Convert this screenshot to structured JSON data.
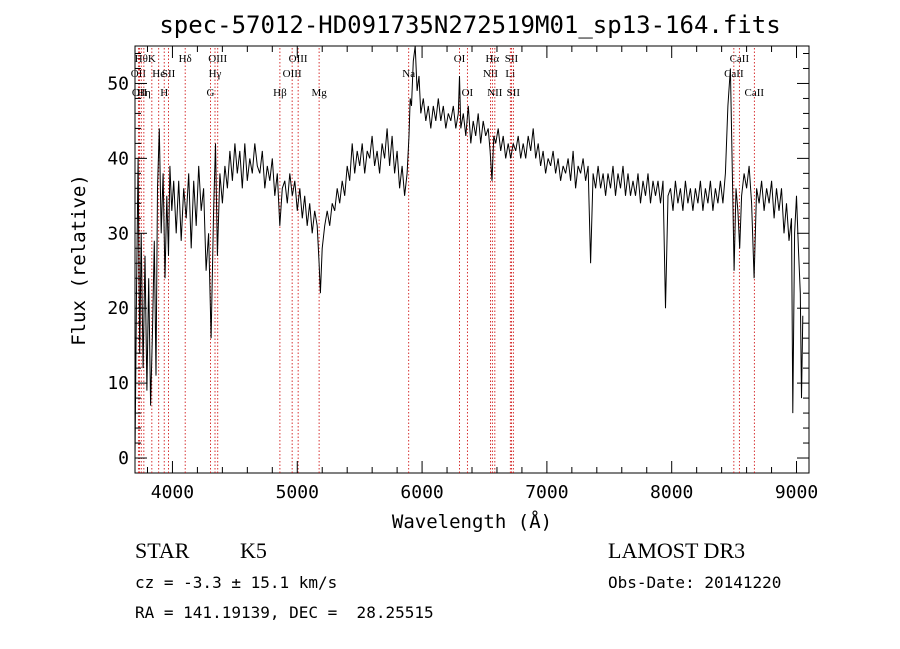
{
  "chart_data": {
    "type": "line",
    "title": "spec-57012-HD091735N272519M01_sp13-164.fits",
    "xlabel": "Wavelength (Å)",
    "ylabel": "Flux (relative)",
    "xlim": [
      3700,
      9100
    ],
    "ylim": [
      -2,
      55
    ],
    "xticks": [
      4000,
      5000,
      6000,
      7000,
      8000,
      9000
    ],
    "yticks": [
      0,
      10,
      20,
      30,
      40,
      50
    ],
    "colors": {
      "spectrum": "#000000",
      "lines": "#cc0000"
    },
    "series": [
      {
        "values_xy": [
          [
            3700,
            0
          ],
          [
            3712,
            22
          ],
          [
            3725,
            40
          ],
          [
            3738,
            14
          ],
          [
            3750,
            30
          ],
          [
            3765,
            12
          ],
          [
            3780,
            27
          ],
          [
            3795,
            9
          ],
          [
            3810,
            24
          ],
          [
            3825,
            7
          ],
          [
            3840,
            17
          ],
          [
            3855,
            29
          ],
          [
            3868,
            11
          ],
          [
            3880,
            36
          ],
          [
            3895,
            44
          ],
          [
            3910,
            30
          ],
          [
            3925,
            38
          ],
          [
            3940,
            24
          ],
          [
            3955,
            35
          ],
          [
            3968,
            27
          ],
          [
            3980,
            39
          ],
          [
            3995,
            33
          ],
          [
            4010,
            37
          ],
          [
            4030,
            30
          ],
          [
            4050,
            37
          ],
          [
            4070,
            29
          ],
          [
            4090,
            36
          ],
          [
            4110,
            32
          ],
          [
            4130,
            38
          ],
          [
            4150,
            28
          ],
          [
            4170,
            37
          ],
          [
            4190,
            31
          ],
          [
            4210,
            39
          ],
          [
            4230,
            33
          ],
          [
            4250,
            36
          ],
          [
            4270,
            25
          ],
          [
            4290,
            30
          ],
          [
            4310,
            16
          ],
          [
            4330,
            33
          ],
          [
            4345,
            42
          ],
          [
            4360,
            27
          ],
          [
            4380,
            38
          ],
          [
            4400,
            34
          ],
          [
            4420,
            39
          ],
          [
            4440,
            36
          ],
          [
            4460,
            41
          ],
          [
            4480,
            37
          ],
          [
            4500,
            42
          ],
          [
            4520,
            38
          ],
          [
            4540,
            41
          ],
          [
            4560,
            36
          ],
          [
            4580,
            42
          ],
          [
            4600,
            37
          ],
          [
            4620,
            40
          ],
          [
            4640,
            38
          ],
          [
            4660,
            42
          ],
          [
            4680,
            39
          ],
          [
            4700,
            38
          ],
          [
            4720,
            41
          ],
          [
            4740,
            36
          ],
          [
            4760,
            39
          ],
          [
            4780,
            37
          ],
          [
            4800,
            40
          ],
          [
            4820,
            35
          ],
          [
            4840,
            38
          ],
          [
            4860,
            31
          ],
          [
            4880,
            36
          ],
          [
            4900,
            37
          ],
          [
            4920,
            34
          ],
          [
            4940,
            38
          ],
          [
            4960,
            35
          ],
          [
            4980,
            37
          ],
          [
            5000,
            33
          ],
          [
            5020,
            36
          ],
          [
            5040,
            32
          ],
          [
            5060,
            35
          ],
          [
            5080,
            31
          ],
          [
            5100,
            34
          ],
          [
            5120,
            30
          ],
          [
            5140,
            33
          ],
          [
            5160,
            31
          ],
          [
            5175,
            26
          ],
          [
            5185,
            22
          ],
          [
            5200,
            28
          ],
          [
            5220,
            31
          ],
          [
            5240,
            33
          ],
          [
            5260,
            31
          ],
          [
            5280,
            34
          ],
          [
            5300,
            33
          ],
          [
            5320,
            36
          ],
          [
            5340,
            34
          ],
          [
            5360,
            37
          ],
          [
            5380,
            35
          ],
          [
            5400,
            39
          ],
          [
            5420,
            37
          ],
          [
            5440,
            42
          ],
          [
            5460,
            38
          ],
          [
            5480,
            41
          ],
          [
            5500,
            39
          ],
          [
            5520,
            42
          ],
          [
            5540,
            38
          ],
          [
            5560,
            41
          ],
          [
            5580,
            40
          ],
          [
            5600,
            43
          ],
          [
            5620,
            39
          ],
          [
            5640,
            41
          ],
          [
            5660,
            38
          ],
          [
            5680,
            42
          ],
          [
            5700,
            40
          ],
          [
            5720,
            44
          ],
          [
            5740,
            39
          ],
          [
            5760,
            43
          ],
          [
            5780,
            38
          ],
          [
            5800,
            41
          ],
          [
            5820,
            36
          ],
          [
            5840,
            39
          ],
          [
            5860,
            35
          ],
          [
            5880,
            38
          ],
          [
            5895,
            43
          ],
          [
            5905,
            48
          ],
          [
            5915,
            47
          ],
          [
            5930,
            53
          ],
          [
            5945,
            57
          ],
          [
            5960,
            49
          ],
          [
            5975,
            51
          ],
          [
            5990,
            46
          ],
          [
            6010,
            48
          ],
          [
            6030,
            45
          ],
          [
            6050,
            47
          ],
          [
            6070,
            44
          ],
          [
            6090,
            47
          ],
          [
            6110,
            45
          ],
          [
            6130,
            48
          ],
          [
            6150,
            45
          ],
          [
            6170,
            47
          ],
          [
            6190,
            44
          ],
          [
            6210,
            46
          ],
          [
            6230,
            45
          ],
          [
            6250,
            47
          ],
          [
            6270,
            44
          ],
          [
            6290,
            46
          ],
          [
            6300,
            51
          ],
          [
            6310,
            44
          ],
          [
            6330,
            46
          ],
          [
            6350,
            43
          ],
          [
            6370,
            47
          ],
          [
            6390,
            42
          ],
          [
            6410,
            45
          ],
          [
            6430,
            43
          ],
          [
            6450,
            46
          ],
          [
            6470,
            42
          ],
          [
            6490,
            45
          ],
          [
            6510,
            43
          ],
          [
            6530,
            44
          ],
          [
            6545,
            41
          ],
          [
            6560,
            37
          ],
          [
            6575,
            43
          ],
          [
            6590,
            42
          ],
          [
            6610,
            44
          ],
          [
            6630,
            41
          ],
          [
            6650,
            43
          ],
          [
            6670,
            40
          ],
          [
            6690,
            42
          ],
          [
            6710,
            40
          ],
          [
            6730,
            42
          ],
          [
            6750,
            41
          ],
          [
            6770,
            43
          ],
          [
            6790,
            40
          ],
          [
            6810,
            42
          ],
          [
            6830,
            40
          ],
          [
            6850,
            43
          ],
          [
            6870,
            41
          ],
          [
            6890,
            44
          ],
          [
            6910,
            40
          ],
          [
            6930,
            42
          ],
          [
            6950,
            39
          ],
          [
            6970,
            41
          ],
          [
            6990,
            38
          ],
          [
            7010,
            40
          ],
          [
            7030,
            39
          ],
          [
            7050,
            41
          ],
          [
            7070,
            38
          ],
          [
            7090,
            40
          ],
          [
            7110,
            37
          ],
          [
            7130,
            39
          ],
          [
            7150,
            38
          ],
          [
            7170,
            40
          ],
          [
            7190,
            37
          ],
          [
            7210,
            41
          ],
          [
            7230,
            36
          ],
          [
            7250,
            39
          ],
          [
            7270,
            38
          ],
          [
            7290,
            40
          ],
          [
            7310,
            37
          ],
          [
            7330,
            39
          ],
          [
            7350,
            26
          ],
          [
            7370,
            38
          ],
          [
            7390,
            36
          ],
          [
            7410,
            39
          ],
          [
            7430,
            36
          ],
          [
            7450,
            38
          ],
          [
            7470,
            35
          ],
          [
            7490,
            38
          ],
          [
            7510,
            36
          ],
          [
            7530,
            39
          ],
          [
            7550,
            35
          ],
          [
            7570,
            38
          ],
          [
            7590,
            36
          ],
          [
            7610,
            39
          ],
          [
            7630,
            35
          ],
          [
            7650,
            38
          ],
          [
            7670,
            35
          ],
          [
            7690,
            37
          ],
          [
            7710,
            35
          ],
          [
            7730,
            38
          ],
          [
            7750,
            34
          ],
          [
            7770,
            37
          ],
          [
            7790,
            35
          ],
          [
            7810,
            38
          ],
          [
            7830,
            34
          ],
          [
            7850,
            37
          ],
          [
            7870,
            35
          ],
          [
            7890,
            37
          ],
          [
            7910,
            34
          ],
          [
            7930,
            37
          ],
          [
            7950,
            20
          ],
          [
            7970,
            35
          ],
          [
            7990,
            36
          ],
          [
            8010,
            33
          ],
          [
            8030,
            37
          ],
          [
            8050,
            34
          ],
          [
            8070,
            36
          ],
          [
            8090,
            33
          ],
          [
            8110,
            37
          ],
          [
            8130,
            34
          ],
          [
            8150,
            36
          ],
          [
            8170,
            33
          ],
          [
            8190,
            36
          ],
          [
            8210,
            34
          ],
          [
            8230,
            37
          ],
          [
            8250,
            33
          ],
          [
            8270,
            36
          ],
          [
            8290,
            34
          ],
          [
            8310,
            37
          ],
          [
            8330,
            33
          ],
          [
            8350,
            36
          ],
          [
            8370,
            34
          ],
          [
            8390,
            37
          ],
          [
            8410,
            34
          ],
          [
            8430,
            38
          ],
          [
            8450,
            47
          ],
          [
            8470,
            52
          ],
          [
            8490,
            34
          ],
          [
            8500,
            25
          ],
          [
            8515,
            36
          ],
          [
            8530,
            33
          ],
          [
            8545,
            28
          ],
          [
            8560,
            35
          ],
          [
            8580,
            38
          ],
          [
            8600,
            36
          ],
          [
            8620,
            39
          ],
          [
            8640,
            34
          ],
          [
            8660,
            24
          ],
          [
            8680,
            36
          ],
          [
            8700,
            34
          ],
          [
            8720,
            37
          ],
          [
            8740,
            33
          ],
          [
            8760,
            36
          ],
          [
            8780,
            34
          ],
          [
            8800,
            37
          ],
          [
            8820,
            32
          ],
          [
            8840,
            36
          ],
          [
            8860,
            33
          ],
          [
            8880,
            36
          ],
          [
            8900,
            30
          ],
          [
            8920,
            34
          ],
          [
            8940,
            29
          ],
          [
            8960,
            32
          ],
          [
            8970,
            6
          ],
          [
            8985,
            30
          ],
          [
            9000,
            35
          ],
          [
            9015,
            28
          ],
          [
            9030,
            22
          ],
          [
            9040,
            8
          ],
          [
            9050,
            19
          ]
        ]
      }
    ],
    "line_markers": [
      {
        "x": 3727,
        "label": "OII",
        "row": 2
      },
      {
        "x": 3736,
        "label": "OII",
        "row": 3
      },
      {
        "x": 3750,
        "label": "Hθ",
        "row": 1
      },
      {
        "x": 3771,
        "label": "Hη",
        "row": 3
      },
      {
        "x": 3835,
        "label": "K",
        "row": 1
      },
      {
        "x": 3890,
        "label": "He",
        "row": 2
      },
      {
        "x": 3934,
        "label": "H",
        "row": 3
      },
      {
        "x": 3969,
        "label": "SII",
        "row": 2
      },
      {
        "x": 4102,
        "label": "Hδ",
        "row": 1
      },
      {
        "x": 4305,
        "label": "G",
        "row": 3
      },
      {
        "x": 4341,
        "label": "Hγ",
        "row": 2
      },
      {
        "x": 4363,
        "label": "OIII",
        "row": 1
      },
      {
        "x": 4861,
        "label": "Hβ",
        "row": 3
      },
      {
        "x": 4959,
        "label": "OIII",
        "row": 2
      },
      {
        "x": 5007,
        "label": "OIII",
        "row": 1
      },
      {
        "x": 5175,
        "label": "Mg",
        "row": 3
      },
      {
        "x": 5893,
        "label": "Na",
        "row": 2
      },
      {
        "x": 6300,
        "label": "OI",
        "row": 1
      },
      {
        "x": 6363,
        "label": "OI",
        "row": 3
      },
      {
        "x": 6548,
        "label": "NII",
        "row": 2
      },
      {
        "x": 6563,
        "label": "Hα",
        "row": 1
      },
      {
        "x": 6583,
        "label": "NII",
        "row": 3
      },
      {
        "x": 6707,
        "label": "Li",
        "row": 2
      },
      {
        "x": 6716,
        "label": "SII",
        "row": 1
      },
      {
        "x": 6731,
        "label": "SII",
        "row": 3
      },
      {
        "x": 8498,
        "label": "CaII",
        "row": 2
      },
      {
        "x": 8542,
        "label": "CaII",
        "row": 1
      },
      {
        "x": 8662,
        "label": "CaII",
        "row": 3
      }
    ]
  },
  "info": {
    "object_class": "STAR",
    "subclass": "K5",
    "survey": "LAMOST DR3",
    "redshift_line": "cz = -3.3 ± 15.1 km/s",
    "obs_date_line": "Obs-Date: 20141220",
    "coords_line": "RA = 141.19139, DEC =  28.25515"
  }
}
